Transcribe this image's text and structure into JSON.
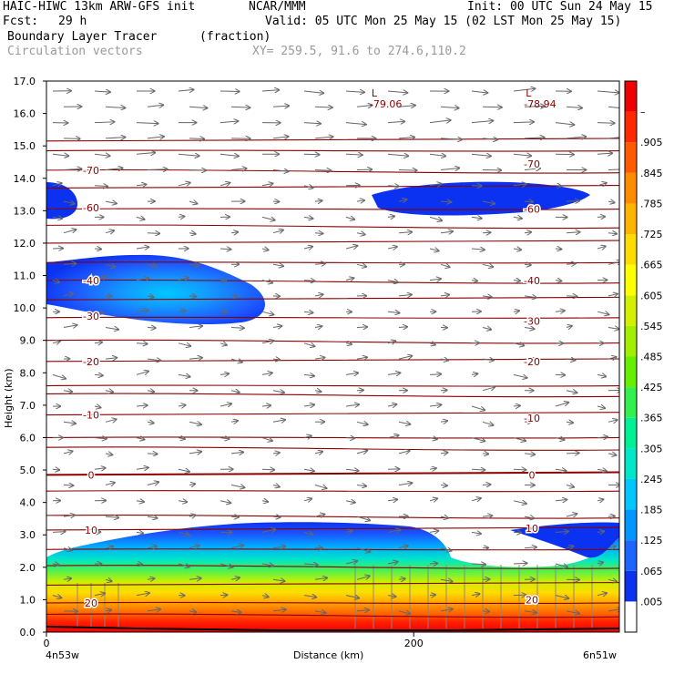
{
  "header": {
    "model": "HAIC-HIWC 13km ARW-GFS init",
    "center": "NCAR/MMM",
    "init": "Init: 00 UTC Sun 24 May 15",
    "fcst_label": "Fcst:",
    "fcst_value": "29 h",
    "valid": "Valid: 05 UTC Mon 25 May 15 (02 LST Mon 25 May 15)",
    "field": "Boundary Layer Tracer",
    "field_units": "(fraction)",
    "overlay": "Circulation vectors",
    "xsec": "XY= 259.5, 91.6 to 274.6,110.2"
  },
  "chart_data": {
    "type": "heatmap",
    "title": "Boundary Layer Tracer",
    "xlabel": "Distance (km)",
    "ylabel": "Height (km)",
    "xlim": [
      0,
      312
    ],
    "ylim": [
      0,
      17
    ],
    "x_ticks": [
      0,
      200
    ],
    "x_tick_labels": [
      "0",
      "200"
    ],
    "x_end_labels": [
      "4n53w",
      "6n51w"
    ],
    "y_ticks": [
      0.0,
      1.0,
      2.0,
      3.0,
      4.0,
      5.0,
      6.0,
      7.0,
      8.0,
      9.0,
      10.0,
      11.0,
      12.0,
      13.0,
      14.0,
      15.0,
      16.0,
      17.0
    ],
    "y_tick_labels": [
      "0.0",
      "1.0",
      "2.0",
      "3.0",
      "4.0",
      "5.0",
      "6.0",
      "7.0",
      "8.0",
      "9.0",
      "10.0",
      "11.0",
      "12.0",
      "13.0",
      "14.0",
      "15.0",
      "16.0",
      "17.0"
    ],
    "colorbar_labels": [
      ".005",
      ".065",
      ".125",
      ".185",
      ".245",
      ".305",
      ".365",
      ".425",
      ".485",
      ".545",
      ".605",
      ".665",
      ".725",
      ".785",
      ".845",
      ".905",
      "–"
    ],
    "colorbar_colors": [
      "#ffffff",
      "#0a32f0",
      "#1e64ff",
      "#0096ff",
      "#00c8ff",
      "#00e6c8",
      "#00f096",
      "#32f050",
      "#64f000",
      "#a0f000",
      "#d2f000",
      "#ffff00",
      "#ffdc00",
      "#ffb400",
      "#ff8c00",
      "#ff5a00",
      "#ff2800",
      "#f00000"
    ],
    "temperature_contours": [
      {
        "label": "-70",
        "h_left": 14.25,
        "h_right": 14.45
      },
      {
        "label": "-60",
        "h_left": 13.1,
        "h_right": 13.05
      },
      {
        "label": "-40",
        "h_left": 10.85,
        "h_right": 10.85
      },
      {
        "label": "-30",
        "h_left": 9.75,
        "h_right": 9.6
      },
      {
        "label": "-20",
        "h_left": 8.35,
        "h_right": 8.35
      },
      {
        "label": "-10",
        "h_left": 6.7,
        "h_right": 6.6
      },
      {
        "label": "0",
        "h_left": 4.85,
        "h_right": 4.85
      },
      {
        "label": "10",
        "h_left": 3.15,
        "h_right": 3.2
      },
      {
        "label": "20",
        "h_left": 0.9,
        "h_right": 1.0
      }
    ],
    "lows": [
      {
        "symbol": "L",
        "value": "-79.06",
        "x": 180,
        "y": 16.35
      },
      {
        "symbol": "L",
        "value": "-78.94",
        "x": 264,
        "y": 16.35
      }
    ]
  }
}
